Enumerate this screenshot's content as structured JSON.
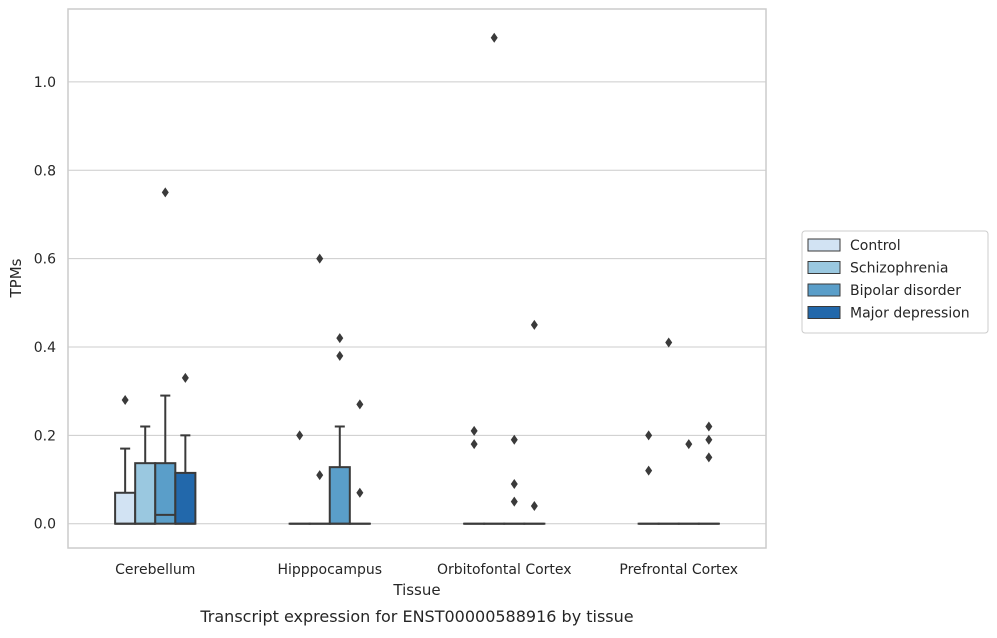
{
  "chart_data": {
    "type": "boxplot",
    "title": "Transcript expression for ENST00000588916 by tissue",
    "xlabel": "Tissue",
    "ylabel": "TPMs",
    "ylim": [
      -0.055,
      1.165
    ],
    "yticks": [
      "0.0",
      "0.2",
      "0.4",
      "0.6",
      "0.8",
      "1.0"
    ],
    "ytick_values": [
      0.0,
      0.2,
      0.4,
      0.6,
      0.8,
      1.0
    ],
    "grid": true,
    "legend_position": "right",
    "categories": [
      "Cerebellum",
      "Hipppocampus",
      "Orbitofontal Cortex",
      "Prefrontal Cortex"
    ],
    "series": [
      {
        "name": "Control",
        "color": "#d2e3f3",
        "boxes": [
          {
            "whislo": 0.0,
            "q1": 0.0,
            "med": 0.0,
            "q3": 0.07,
            "whishi": 0.17,
            "fliers": [
              0.28
            ]
          },
          {
            "whislo": 0.0,
            "q1": 0.0,
            "med": 0.0,
            "q3": 0.0,
            "whishi": 0.0,
            "fliers": [
              0.2
            ]
          },
          {
            "whislo": 0.0,
            "q1": 0.0,
            "med": 0.0,
            "q3": 0.0,
            "whishi": 0.0,
            "fliers": [
              0.21,
              0.18
            ]
          },
          {
            "whislo": 0.0,
            "q1": 0.0,
            "med": 0.0,
            "q3": 0.0,
            "whishi": 0.0,
            "fliers": [
              0.2,
              0.12
            ]
          }
        ]
      },
      {
        "name": "Schizophrenia",
        "color": "#9ac8e0",
        "boxes": [
          {
            "whislo": 0.0,
            "q1": 0.0,
            "med": 0.0,
            "q3": 0.137,
            "whishi": 0.22,
            "fliers": []
          },
          {
            "whislo": 0.0,
            "q1": 0.0,
            "med": 0.0,
            "q3": 0.0,
            "whishi": 0.0,
            "fliers": [
              0.6,
              0.11
            ]
          },
          {
            "whislo": 0.0,
            "q1": 0.0,
            "med": 0.0,
            "q3": 0.0,
            "whishi": 0.0,
            "fliers": [
              1.1
            ]
          },
          {
            "whislo": 0.0,
            "q1": 0.0,
            "med": 0.0,
            "q3": 0.0,
            "whishi": 0.0,
            "fliers": [
              0.41
            ]
          }
        ]
      },
      {
        "name": "Bipolar disorder",
        "color": "#5a9ec9",
        "boxes": [
          {
            "whislo": 0.0,
            "q1": 0.0,
            "med": 0.02,
            "q3": 0.137,
            "whishi": 0.29,
            "fliers": [
              0.75
            ]
          },
          {
            "whislo": 0.0,
            "q1": 0.0,
            "med": 0.0,
            "q3": 0.128,
            "whishi": 0.22,
            "fliers": [
              0.42,
              0.38
            ]
          },
          {
            "whislo": 0.0,
            "q1": 0.0,
            "med": 0.0,
            "q3": 0.0,
            "whishi": 0.0,
            "fliers": [
              0.19,
              0.09,
              0.05
            ]
          },
          {
            "whislo": 0.0,
            "q1": 0.0,
            "med": 0.0,
            "q3": 0.0,
            "whishi": 0.0,
            "fliers": [
              0.18
            ]
          }
        ]
      },
      {
        "name": "Major depression",
        "color": "#2268ab",
        "boxes": [
          {
            "whislo": 0.0,
            "q1": 0.0,
            "med": 0.0,
            "q3": 0.115,
            "whishi": 0.2,
            "fliers": [
              0.33
            ]
          },
          {
            "whislo": 0.0,
            "q1": 0.0,
            "med": 0.0,
            "q3": 0.0,
            "whishi": 0.0,
            "fliers": [
              0.27,
              0.07
            ]
          },
          {
            "whislo": 0.0,
            "q1": 0.0,
            "med": 0.0,
            "q3": 0.0,
            "whishi": 0.0,
            "fliers": [
              0.45,
              0.04
            ]
          },
          {
            "whislo": 0.0,
            "q1": 0.0,
            "med": 0.0,
            "q3": 0.0,
            "whishi": 0.0,
            "fliers": [
              0.22,
              0.19,
              0.15
            ]
          }
        ]
      }
    ]
  }
}
